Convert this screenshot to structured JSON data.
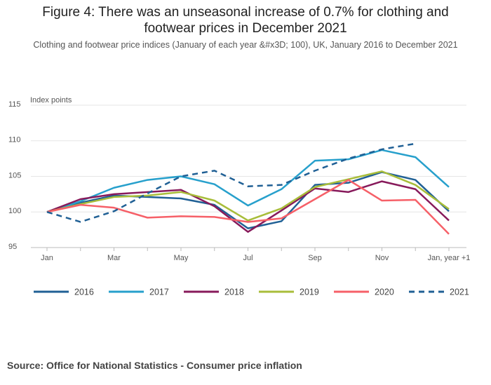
{
  "chart_data": {
    "type": "line",
    "title": "Figure 4: There was an unseasonal increase of 0.7% for clothing and footwear prices in December 2021",
    "subtitle": "Clothing and footwear price indices (January of each year &#x3D; 100), UK, January 2016 to December 2021",
    "y_label": "Index points",
    "source": "Source: Office for National Statistics - Consumer price inflation",
    "categories": [
      "Jan",
      null,
      "Mar",
      null,
      "May",
      null,
      "Jul",
      null,
      "Sep",
      null,
      "Nov",
      null,
      "Jan, year +1"
    ],
    "ylim": [
      95,
      115
    ],
    "yticks": [
      95,
      100,
      105,
      110,
      115
    ],
    "grid": true,
    "series": [
      {
        "name": "2016",
        "color": "#206095",
        "values": [
          100,
          101.3,
          102.3,
          102.1,
          101.9,
          101.0,
          97.7,
          98.7,
          103.8,
          104.1,
          105.6,
          104.5,
          100.1
        ]
      },
      {
        "name": "2017",
        "color": "#27a0cc",
        "values": [
          100,
          101.5,
          103.4,
          104.5,
          105.0,
          103.9,
          100.9,
          103.2,
          107.2,
          107.4,
          108.7,
          107.7,
          103.5
        ]
      },
      {
        "name": "2018",
        "color": "#871a5b",
        "values": [
          100,
          101.8,
          102.5,
          102.8,
          103.1,
          100.8,
          97.2,
          100.2,
          103.3,
          102.8,
          104.3,
          103.2,
          98.8
        ]
      },
      {
        "name": "2019",
        "color": "#a8bd3a",
        "values": [
          100,
          101.1,
          102.1,
          102.3,
          102.8,
          101.6,
          98.8,
          100.5,
          103.5,
          104.6,
          105.7,
          103.8,
          100.4
        ]
      },
      {
        "name": "2020",
        "color": "#f66068",
        "values": [
          100,
          101.0,
          100.6,
          99.2,
          99.4,
          99.3,
          98.6,
          99.1,
          101.8,
          104.5,
          101.6,
          101.7,
          96.9
        ]
      },
      {
        "name": "2021",
        "color": "#206095",
        "dashed": true,
        "values": [
          100,
          98.6,
          100.1,
          102.6,
          105.0,
          105.8,
          103.6,
          103.8,
          105.8,
          107.5,
          108.8,
          109.6,
          null
        ]
      }
    ]
  }
}
